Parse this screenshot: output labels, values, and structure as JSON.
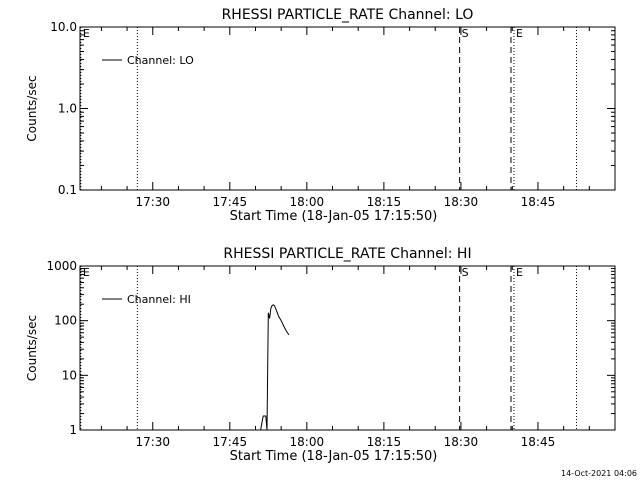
{
  "timestamp": "14-Oct-2021 04:06",
  "chart_data": [
    {
      "type": "line",
      "title": "RHESSI PARTICLE_RATE Channel: LO",
      "xlabel": "Start Time (18-Jan-05 17:15:50)",
      "ylabel": "Counts/sec",
      "yscale": "log",
      "xlim": [
        "17:15:50",
        "19:00:00"
      ],
      "ylim": [
        0.1,
        10.0
      ],
      "xticks": [
        "17:30",
        "17:45",
        "18:00",
        "18:15",
        "18:30",
        "18:45"
      ],
      "yticks": [
        {
          "value": 0.1,
          "label": "0.1"
        },
        {
          "value": 1.0,
          "label": "1.0"
        },
        {
          "value": 10.0,
          "label": "10.0"
        }
      ],
      "legend": {
        "position": "top-left",
        "entries": [
          "Channel: LO"
        ]
      },
      "series": [
        {
          "name": "Channel: LO",
          "x": [],
          "y": []
        }
      ],
      "markers": [
        {
          "time": "17:16:00",
          "style": "dotted",
          "label": "E"
        },
        {
          "time": "17:27:00",
          "style": "dotted",
          "label": ""
        },
        {
          "time": "18:29:45",
          "style": "dashed",
          "label": "S"
        },
        {
          "time": "18:39:45",
          "style": "dashed",
          "label": ""
        },
        {
          "time": "18:40:20",
          "style": "dotted",
          "label": "E"
        },
        {
          "time": "18:52:30",
          "style": "dotted",
          "label": ""
        }
      ]
    },
    {
      "type": "line",
      "title": "RHESSI PARTICLE_RATE Channel: HI",
      "xlabel": "Start Time (18-Jan-05 17:15:50)",
      "ylabel": "Counts/sec",
      "yscale": "log",
      "xlim": [
        "17:15:50",
        "19:00:00"
      ],
      "ylim": [
        1,
        1000
      ],
      "xticks": [
        "17:30",
        "17:45",
        "18:00",
        "18:15",
        "18:30",
        "18:45"
      ],
      "yticks": [
        {
          "value": 1,
          "label": "1"
        },
        {
          "value": 10,
          "label": "10"
        },
        {
          "value": 100,
          "label": "100"
        },
        {
          "value": 1000,
          "label": "1000"
        }
      ],
      "legend": {
        "position": "top-left",
        "entries": [
          "Channel: HI"
        ]
      },
      "series": [
        {
          "name": "Channel: HI",
          "x": [
            "17:51:00",
            "17:51:30",
            "17:52:00",
            "17:52:15",
            "17:52:30",
            "17:52:45",
            "17:53:00",
            "17:53:15",
            "17:53:30",
            "17:53:45",
            "17:54:00",
            "17:54:15",
            "17:54:30",
            "17:55:00",
            "17:55:30",
            "17:56:00",
            "17:56:30"
          ],
          "y": [
            1,
            1.8,
            1.8,
            1,
            140,
            110,
            170,
            190,
            195,
            185,
            160,
            140,
            120,
            100,
            80,
            65,
            55
          ]
        }
      ],
      "markers": [
        {
          "time": "17:16:00",
          "style": "dotted",
          "label": "E"
        },
        {
          "time": "17:27:00",
          "style": "dotted",
          "label": ""
        },
        {
          "time": "18:29:45",
          "style": "dashed",
          "label": "S"
        },
        {
          "time": "18:39:45",
          "style": "dashed",
          "label": ""
        },
        {
          "time": "18:40:20",
          "style": "dotted",
          "label": "E"
        },
        {
          "time": "18:52:30",
          "style": "dotted",
          "label": ""
        }
      ]
    }
  ]
}
